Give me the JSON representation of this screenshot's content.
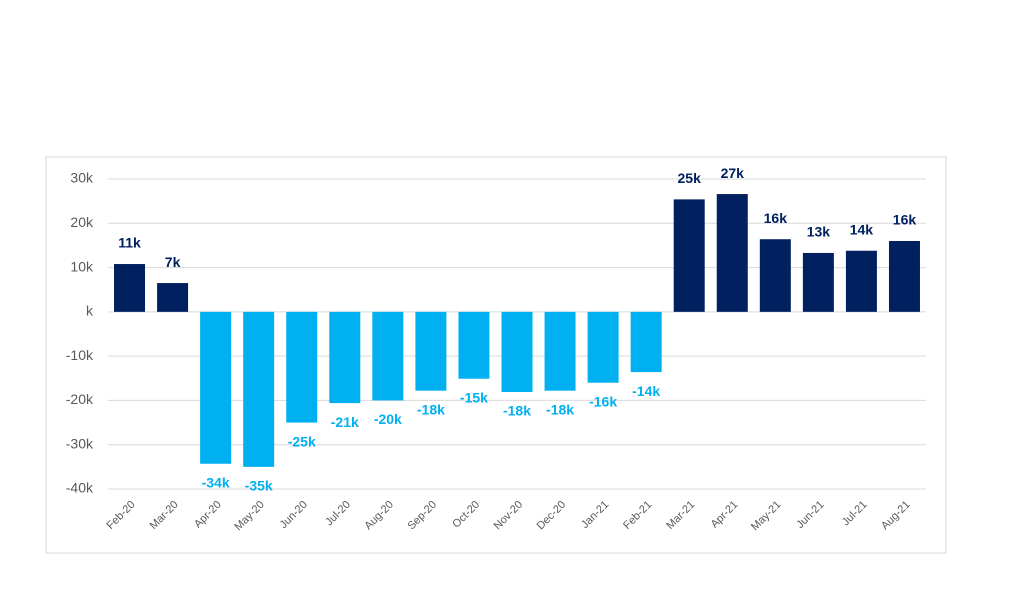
{
  "chart_data": {
    "type": "bar",
    "categories": [
      "Feb-20",
      "Mar-20",
      "Apr-20",
      "May-20",
      "Jun-20",
      "Jul-20",
      "Aug-20",
      "Sep-20",
      "Oct-20",
      "Nov-20",
      "Dec-20",
      "Jan-21",
      "Feb-21",
      "Mar-21",
      "Apr-21",
      "May-21",
      "Jun-21",
      "Jul-21",
      "Aug-21"
    ],
    "values": [
      10.8,
      6.5,
      -34.3,
      -35.0,
      -25.0,
      -20.6,
      -20.0,
      -17.8,
      -15.1,
      -18.1,
      -17.8,
      -16.0,
      -13.6,
      25.4,
      26.6,
      16.4,
      13.3,
      13.8,
      16.0
    ],
    "value_labels": [
      "11k",
      "7k",
      "-34k",
      "-35k",
      "-25k",
      "-21k",
      "-20k",
      "-18k",
      "-15k",
      "-18k",
      "-18k",
      "-16k",
      "-14k",
      "25k",
      "27k",
      "16k",
      "13k",
      "14k",
      "16k"
    ],
    "color": "#002060",
    "negative_color": "#00b0f0",
    "ylim": [
      -40,
      30
    ],
    "yticks": [
      {
        "value": -40,
        "label": "-40k"
      },
      {
        "value": -30,
        "label": "-30k"
      },
      {
        "value": -20,
        "label": "-20k"
      },
      {
        "value": -10,
        "label": "-10k"
      },
      {
        "value": 0,
        "label": "k"
      },
      {
        "value": 10,
        "label": "10k"
      },
      {
        "value": 20,
        "label": "20k"
      },
      {
        "value": 30,
        "label": "30k"
      }
    ],
    "grid": true
  }
}
